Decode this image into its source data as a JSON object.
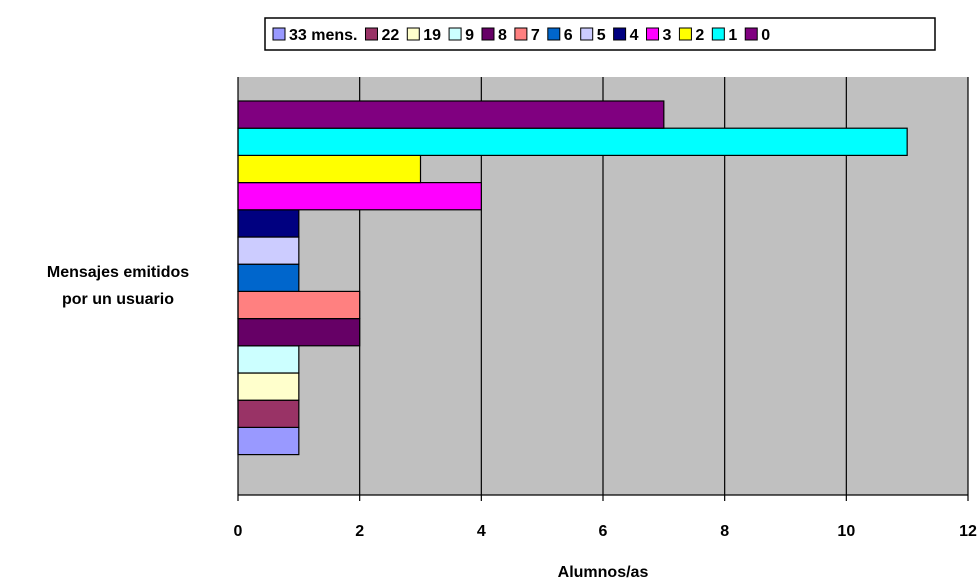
{
  "chart_data": {
    "type": "bar",
    "orientation": "horizontal",
    "title": "",
    "xlabel": "Alumnos/as",
    "ylabel_lines": [
      "Mensajes emitidos",
      "por un usuario"
    ],
    "xlim": [
      0,
      12
    ],
    "xticks": [
      "0",
      "2",
      "4",
      "6",
      "8",
      "10",
      "12"
    ],
    "grid": "vertical",
    "plot_background": "#c0c0c0",
    "legend_position": "top",
    "series": [
      {
        "name": "33 mens.",
        "value": 1,
        "color": "#9999ff"
      },
      {
        "name": "22",
        "value": 1,
        "color": "#993366"
      },
      {
        "name": "19",
        "value": 1,
        "color": "#ffffcc"
      },
      {
        "name": "9",
        "value": 1,
        "color": "#ccffff"
      },
      {
        "name": "8",
        "value": 2,
        "color": "#660066"
      },
      {
        "name": "7",
        "value": 2,
        "color": "#ff8080"
      },
      {
        "name": "6",
        "value": 1,
        "color": "#0066cc"
      },
      {
        "name": "5",
        "value": 1,
        "color": "#ccccff"
      },
      {
        "name": "4",
        "value": 1,
        "color": "#000080"
      },
      {
        "name": "3",
        "value": 4,
        "color": "#ff00ff"
      },
      {
        "name": "2",
        "value": 3,
        "color": "#ffff00"
      },
      {
        "name": "1",
        "value": 11,
        "color": "#00ffff"
      },
      {
        "name": "0",
        "value": 7,
        "color": "#800080"
      }
    ]
  }
}
